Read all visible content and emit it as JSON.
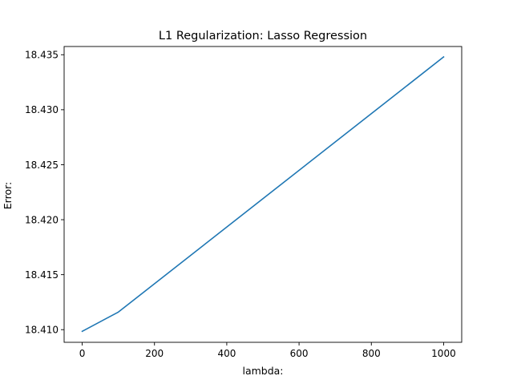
{
  "chart_data": {
    "type": "line",
    "title": "L1 Regularization: Lasso Regression",
    "xlabel": "lambda:",
    "ylabel": "Error:",
    "xlim": [
      -50,
      1050
    ],
    "ylim": [
      18.40885,
      18.43575
    ],
    "xticks": [
      {
        "value": 0,
        "label": "0"
      },
      {
        "value": 200,
        "label": "200"
      },
      {
        "value": 400,
        "label": "400"
      },
      {
        "value": 600,
        "label": "600"
      },
      {
        "value": 800,
        "label": "800"
      },
      {
        "value": 1000,
        "label": "1000"
      }
    ],
    "yticks": [
      {
        "value": 18.41,
        "label": "18.410"
      },
      {
        "value": 18.415,
        "label": "18.415"
      },
      {
        "value": 18.42,
        "label": "18.420"
      },
      {
        "value": 18.425,
        "label": "18.425"
      },
      {
        "value": 18.43,
        "label": "18.430"
      },
      {
        "value": 18.435,
        "label": "18.435"
      }
    ],
    "grid": false,
    "legend": "none",
    "series": [
      {
        "color": "#1f77b4",
        "x": [
          0,
          100,
          1000
        ],
        "y": [
          18.40985,
          18.4116,
          18.4348
        ]
      }
    ]
  }
}
